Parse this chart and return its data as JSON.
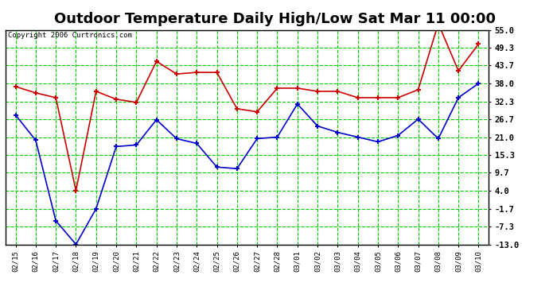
{
  "title": "Outdoor Temperature Daily High/Low Sat Mar 11 00:00",
  "copyright": "Copyright 2006 Curtronics.com",
  "x_labels": [
    "02/15",
    "02/16",
    "02/17",
    "02/18",
    "02/19",
    "02/20",
    "02/21",
    "02/22",
    "02/23",
    "02/24",
    "02/25",
    "02/26",
    "02/27",
    "02/28",
    "03/01",
    "03/02",
    "03/03",
    "03/04",
    "03/05",
    "03/06",
    "03/07",
    "03/08",
    "03/09",
    "03/10"
  ],
  "high_temps": [
    37.0,
    35.0,
    33.5,
    4.0,
    35.5,
    33.0,
    32.0,
    45.0,
    41.0,
    41.5,
    41.5,
    30.0,
    29.0,
    36.5,
    36.5,
    35.5,
    35.5,
    33.5,
    33.5,
    33.5,
    36.0,
    57.0,
    42.0,
    50.5
  ],
  "low_temps": [
    28.0,
    20.0,
    -5.5,
    -13.0,
    -1.7,
    18.0,
    18.5,
    26.5,
    20.5,
    19.0,
    11.5,
    11.0,
    20.5,
    21.0,
    31.5,
    24.5,
    22.5,
    21.0,
    19.5,
    21.5,
    26.7,
    20.5,
    33.5,
    38.0
  ],
  "high_color": "#cc0000",
  "low_color": "#0000cc",
  "marker": "+",
  "background_color": "#ffffff",
  "plot_bg_color": "#ffffff",
  "grid_color": "#00cc00",
  "yticks": [
    55.0,
    49.3,
    43.7,
    38.0,
    32.3,
    26.7,
    21.0,
    15.3,
    9.7,
    4.0,
    -1.7,
    -7.3,
    -13.0
  ],
  "ylim": [
    -13.0,
    55.0
  ],
  "title_fontsize": 13,
  "border_color": "#000000"
}
